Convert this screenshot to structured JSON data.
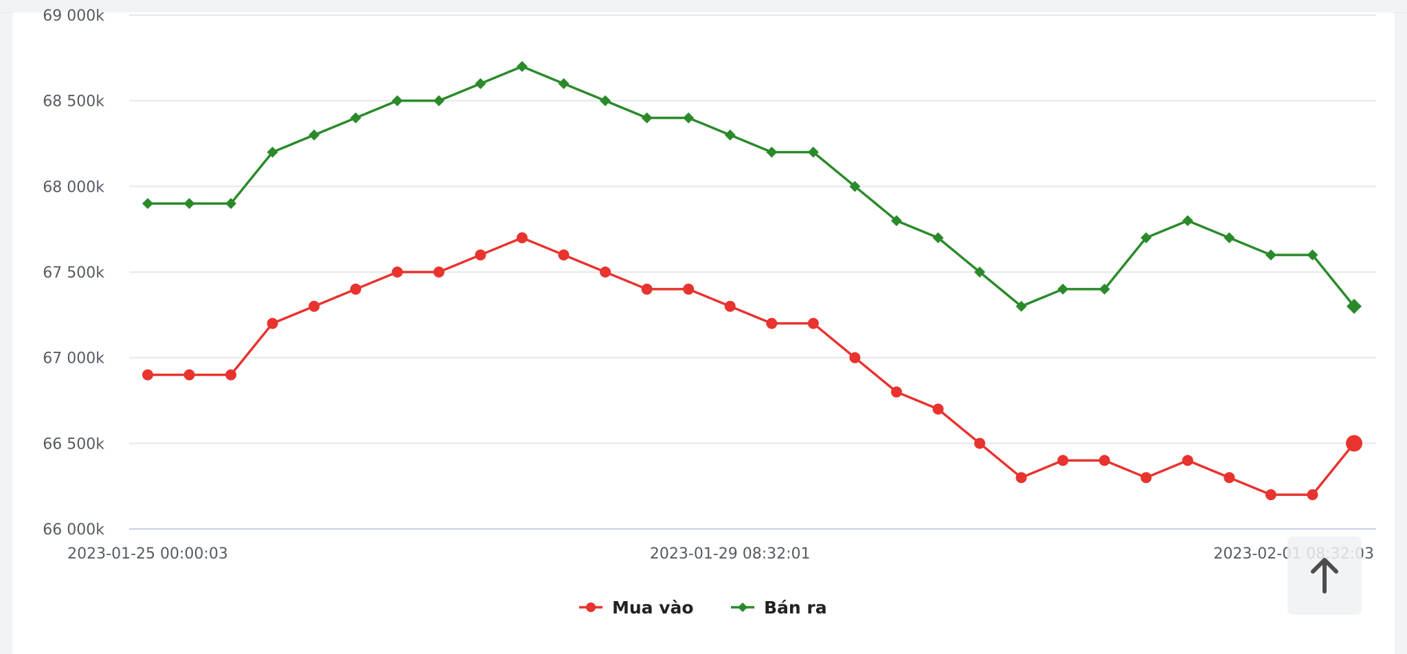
{
  "chart_data": {
    "type": "line",
    "x_tick_labels": [
      "2023-01-25 00:00:03",
      "2023-01-29 08:32:01",
      "2023-02-01 08:32:03"
    ],
    "x_tick_indices": [
      0,
      14,
      30
    ],
    "y_tick_labels": [
      "66 000k",
      "66 500k",
      "67 000k",
      "67 500k",
      "68 000k",
      "68 500k",
      "69 000k"
    ],
    "ylim": [
      66000,
      69000
    ],
    "grid": true,
    "legend_position": "bottom-center",
    "series": [
      {
        "name": "Mua vào",
        "color": "#e8332e",
        "marker": "circle",
        "values": [
          66900,
          66900,
          66900,
          67200,
          67300,
          67400,
          67500,
          67500,
          67600,
          67700,
          67600,
          67500,
          67400,
          67400,
          67300,
          67200,
          67200,
          67000,
          66800,
          66700,
          66500,
          66300,
          66400,
          66400,
          66300,
          66400,
          66300,
          66200,
          66200,
          66500
        ]
      },
      {
        "name": "Bán ra",
        "color": "#2a8a2a",
        "marker": "diamond",
        "values": [
          67900,
          67900,
          67900,
          68200,
          68300,
          68400,
          68500,
          68500,
          68600,
          68700,
          68600,
          68500,
          68400,
          68400,
          68300,
          68200,
          68200,
          68000,
          67800,
          67700,
          67500,
          67300,
          67400,
          67400,
          67700,
          67800,
          67700,
          67600,
          67600,
          67300
        ]
      }
    ]
  },
  "scroll_top": {
    "icon": "arrow-up-icon"
  }
}
